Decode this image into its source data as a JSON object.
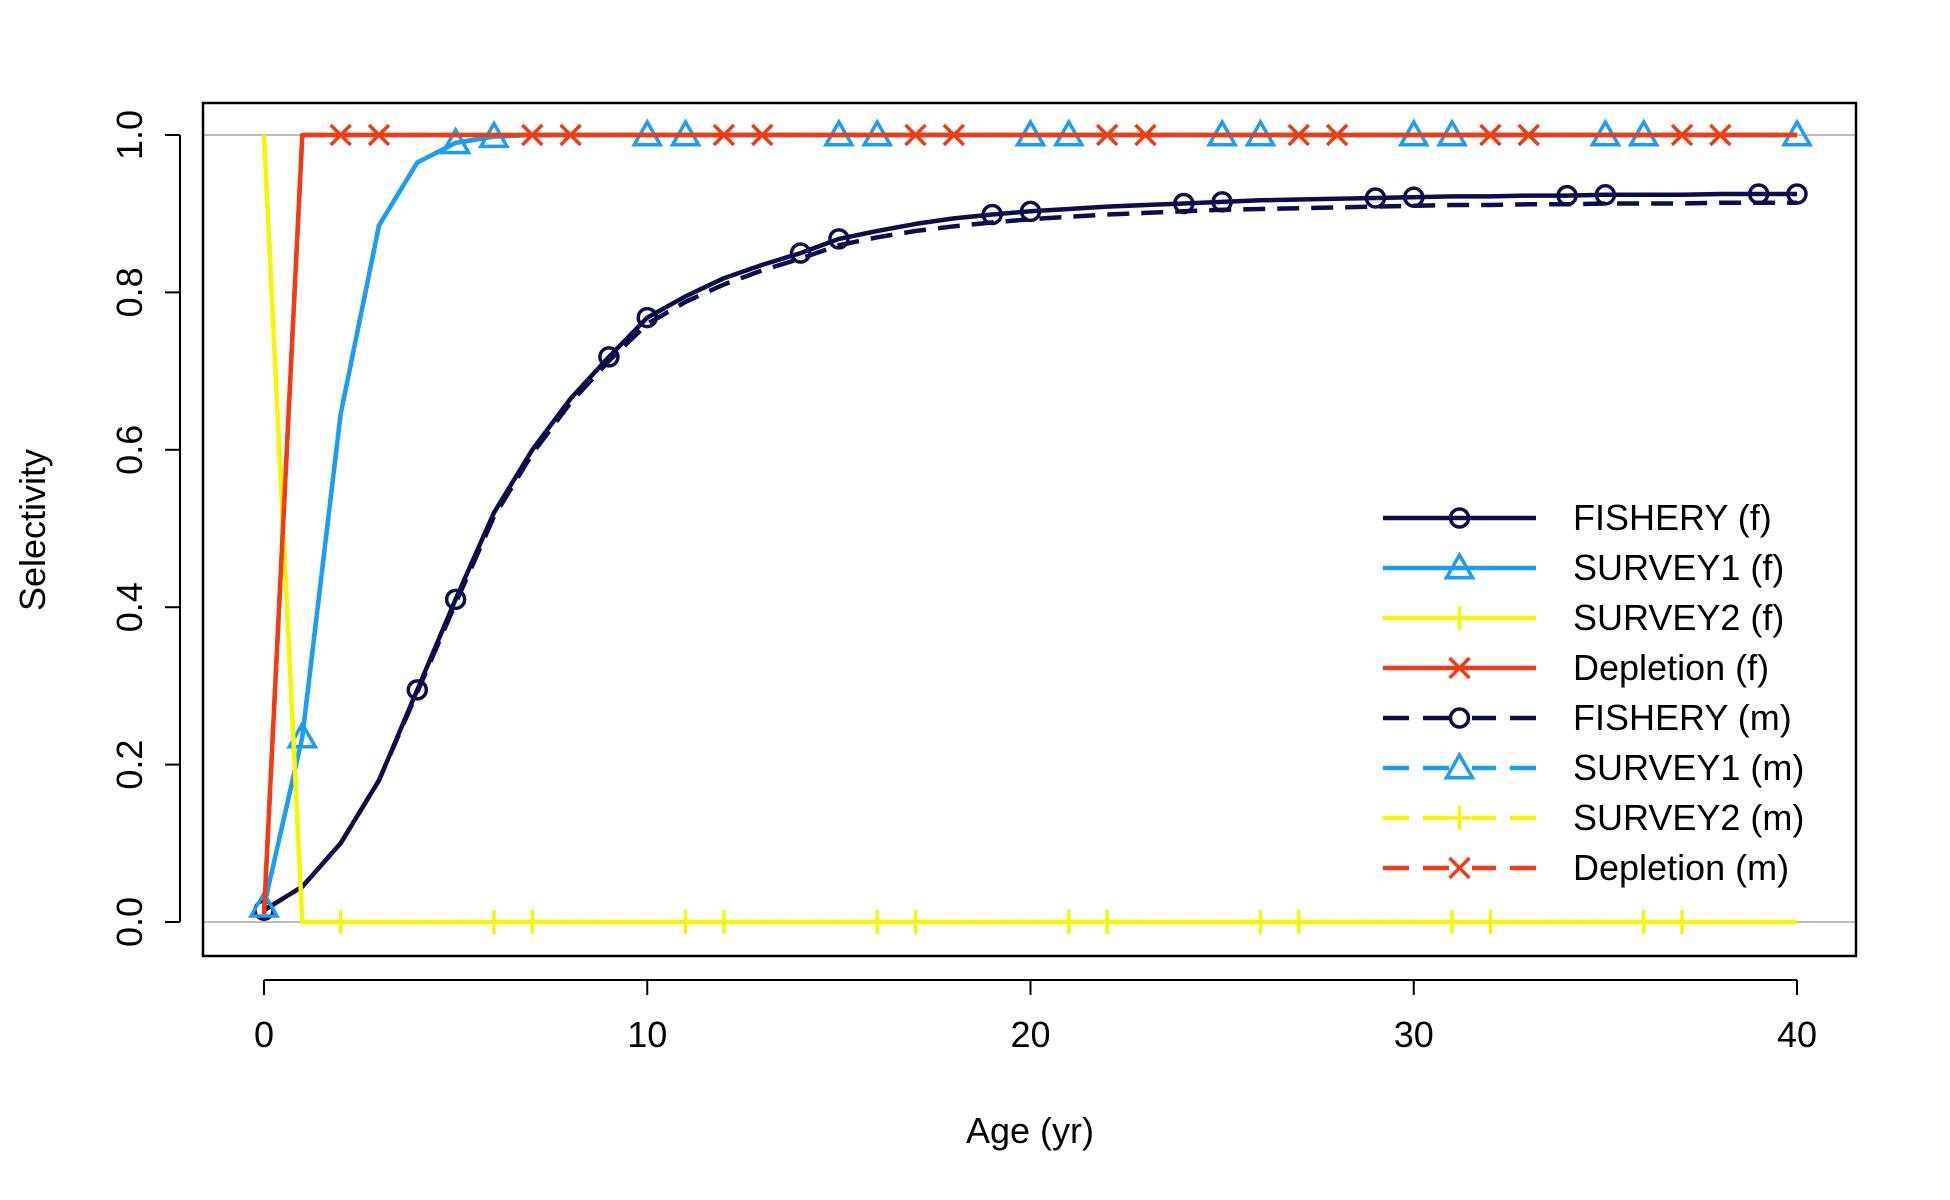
{
  "chart_data": {
    "type": "line",
    "xlabel": "Age (yr)",
    "ylabel": "Selectivity",
    "xlim": [
      0,
      40
    ],
    "ylim": [
      0,
      1
    ],
    "xticks": [
      "0",
      "10",
      "20",
      "30",
      "40"
    ],
    "yticks": [
      "0.0",
      "0.2",
      "0.4",
      "0.6",
      "0.8",
      "1.0"
    ],
    "reference_lines_y": [
      0,
      1
    ],
    "legend_position": "right",
    "x": [
      0,
      1,
      2,
      3,
      4,
      5,
      6,
      7,
      8,
      9,
      10,
      11,
      12,
      13,
      14,
      15,
      16,
      17,
      18,
      19,
      20,
      21,
      22,
      23,
      24,
      25,
      26,
      27,
      28,
      29,
      30,
      31,
      32,
      33,
      34,
      35,
      36,
      37,
      38,
      39,
      40
    ],
    "series": [
      {
        "name": "FISHERY (f)",
        "color": "#0d0d4d",
        "dash": "solid",
        "marker": "circle",
        "marker_ages": [
          0,
          4,
          5,
          9,
          10,
          14,
          15,
          19,
          20,
          24,
          25,
          29,
          30,
          34,
          35,
          39,
          40
        ],
        "values": [
          0.015,
          0.045,
          0.1,
          0.18,
          0.295,
          0.41,
          0.52,
          0.6,
          0.665,
          0.718,
          0.768,
          0.795,
          0.818,
          0.835,
          0.85,
          0.868,
          0.878,
          0.887,
          0.894,
          0.899,
          0.903,
          0.906,
          0.909,
          0.911,
          0.913,
          0.915,
          0.917,
          0.918,
          0.919,
          0.92,
          0.921,
          0.922,
          0.922,
          0.923,
          0.923,
          0.924,
          0.924,
          0.924,
          0.925,
          0.925,
          0.925
        ]
      },
      {
        "name": "SURVEY1 (f)",
        "color": "#1e9cf0",
        "dash": "solid",
        "marker": "triangle",
        "marker_ages": [
          0,
          1,
          5,
          6,
          10,
          11,
          15,
          16,
          20,
          21,
          25,
          26,
          30,
          31,
          35,
          36,
          40
        ],
        "values": [
          0.02,
          0.235,
          0.645,
          0.885,
          0.965,
          0.99,
          0.998,
          1,
          1,
          1,
          1,
          1,
          1,
          1,
          1,
          1,
          1,
          1,
          1,
          1,
          1,
          1,
          1,
          1,
          1,
          1,
          1,
          1,
          1,
          1,
          1,
          1,
          1,
          1,
          1,
          1,
          1,
          1,
          1,
          1,
          1
        ]
      },
      {
        "name": "SURVEY2 (f)",
        "color": "#f5f50a",
        "dash": "solid",
        "marker": "plus",
        "marker_ages": [
          2,
          6,
          7,
          11,
          12,
          16,
          17,
          21,
          22,
          26,
          27,
          31,
          32,
          36,
          37
        ],
        "values": [
          1,
          0,
          0,
          0,
          0,
          0,
          0,
          0,
          0,
          0,
          0,
          0,
          0,
          0,
          0,
          0,
          0,
          0,
          0,
          0,
          0,
          0,
          0,
          0,
          0,
          0,
          0,
          0,
          0,
          0,
          0,
          0,
          0,
          0,
          0,
          0,
          0,
          0,
          0,
          0,
          0
        ]
      },
      {
        "name": "Depletion (f)",
        "color": "#f03c14",
        "dash": "solid",
        "marker": "cross",
        "marker_ages": [
          2,
          3,
          7,
          8,
          12,
          13,
          17,
          18,
          22,
          23,
          27,
          28,
          32,
          33,
          37,
          38
        ],
        "values": [
          0.01,
          1,
          1,
          1,
          1,
          1,
          1,
          1,
          1,
          1,
          1,
          1,
          1,
          1,
          1,
          1,
          1,
          1,
          1,
          1,
          1,
          1,
          1,
          1,
          1,
          1,
          1,
          1,
          1,
          1,
          1,
          1,
          1,
          1,
          1,
          1,
          1,
          1,
          1,
          1,
          1
        ]
      },
      {
        "name": "FISHERY (m)",
        "color": "#0d0d4d",
        "dash": "dashed",
        "marker": "circle",
        "marker_ages": [],
        "values": [
          0.015,
          0.045,
          0.1,
          0.18,
          0.292,
          0.405,
          0.515,
          0.595,
          0.66,
          0.713,
          0.76,
          0.788,
          0.81,
          0.828,
          0.843,
          0.86,
          0.87,
          0.878,
          0.884,
          0.889,
          0.893,
          0.896,
          0.899,
          0.901,
          0.903,
          0.905,
          0.906,
          0.907,
          0.908,
          0.909,
          0.91,
          0.911,
          0.911,
          0.912,
          0.912,
          0.913,
          0.913,
          0.913,
          0.914,
          0.914,
          0.914
        ]
      },
      {
        "name": "SURVEY1 (m)",
        "color": "#1e9cf0",
        "dash": "dashed",
        "marker": "triangle",
        "marker_ages": [],
        "values": [
          0.02,
          0.235,
          0.645,
          0.885,
          0.965,
          0.99,
          0.998,
          1,
          1,
          1,
          1,
          1,
          1,
          1,
          1,
          1,
          1,
          1,
          1,
          1,
          1,
          1,
          1,
          1,
          1,
          1,
          1,
          1,
          1,
          1,
          1,
          1,
          1,
          1,
          1,
          1,
          1,
          1,
          1,
          1,
          1
        ]
      },
      {
        "name": "SURVEY2 (m)",
        "color": "#f5f50a",
        "dash": "dashed",
        "marker": "plus",
        "marker_ages": [],
        "values": [
          1,
          0,
          0,
          0,
          0,
          0,
          0,
          0,
          0,
          0,
          0,
          0,
          0,
          0,
          0,
          0,
          0,
          0,
          0,
          0,
          0,
          0,
          0,
          0,
          0,
          0,
          0,
          0,
          0,
          0,
          0,
          0,
          0,
          0,
          0,
          0,
          0,
          0,
          0,
          0,
          0
        ]
      },
      {
        "name": "Depletion (m)",
        "color": "#f03c14",
        "dash": "dashed",
        "marker": "cross",
        "marker_ages": [],
        "values": [
          0.01,
          1,
          1,
          1,
          1,
          1,
          1,
          1,
          1,
          1,
          1,
          1,
          1,
          1,
          1,
          1,
          1,
          1,
          1,
          1,
          1,
          1,
          1,
          1,
          1,
          1,
          1,
          1,
          1,
          1,
          1,
          1,
          1,
          1,
          1,
          1,
          1,
          1,
          1,
          1,
          1
        ]
      }
    ]
  }
}
